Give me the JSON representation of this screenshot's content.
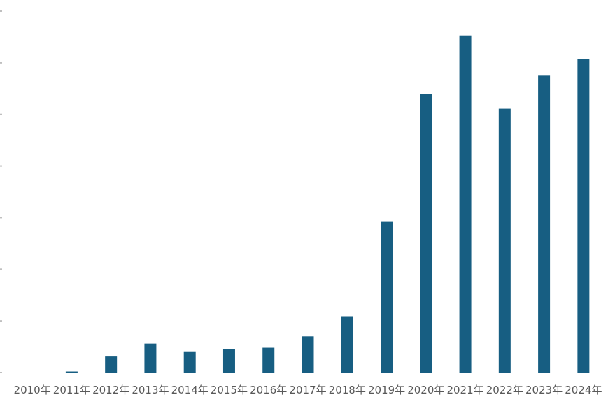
{
  "chart_data": {
    "type": "bar",
    "title": "",
    "xlabel": "",
    "ylabel": "",
    "categories": [
      "2010年",
      "2011年",
      "2012年",
      "2013年",
      "2014年",
      "2015年",
      "2016年",
      "2017年",
      "2018年",
      "2019年",
      "2020年",
      "2021年",
      "2022年",
      "2023年",
      "2024年"
    ],
    "values": [
      0,
      0.2,
      3.1,
      5.6,
      4.1,
      4.6,
      4.8,
      7.0,
      10.9,
      29.3,
      53.9,
      65.3,
      51.1,
      57.5,
      60.7
    ],
    "ylim": [
      0,
      70
    ],
    "ytick_step": 10,
    "ytick_labels_visible": false,
    "grid": false,
    "legend": "none",
    "colors": {
      "bar": "#175e82",
      "axis": "#bfbfbf",
      "tick_label": "#595959"
    }
  }
}
